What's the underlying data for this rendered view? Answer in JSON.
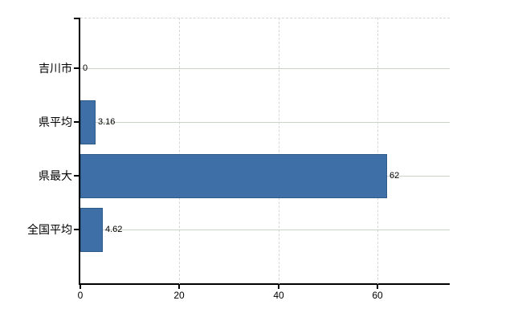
{
  "chart_data": {
    "type": "bar",
    "orientation": "horizontal",
    "title": "",
    "xlabel": "",
    "ylabel": "",
    "categories": [
      "吉川市",
      "県平均",
      "県最大",
      "全国平均"
    ],
    "values": [
      0,
      3.16,
      62,
      4.62
    ],
    "value_labels": [
      "0",
      "3.16",
      "62",
      "4.62"
    ],
    "x_ticks": [
      0,
      20,
      40,
      60
    ],
    "x_tick_labels": [
      "0",
      "20",
      "40",
      "60"
    ],
    "xlim": [
      0,
      74.6
    ],
    "grid": {
      "horizontal": "solid line at each category center",
      "vertical": "dashed line at each nonzero x tick",
      "top_border": "dashed"
    },
    "legend": "none",
    "colors": {
      "background": "#FFFFFF",
      "bar_fill": "#3E70A7",
      "bar_border": "#2E5B8A",
      "axis": "#000000",
      "text": "#000000",
      "grid_horizontal": "#CBD2C7",
      "grid_vertical": "#D7D7D7"
    }
  }
}
